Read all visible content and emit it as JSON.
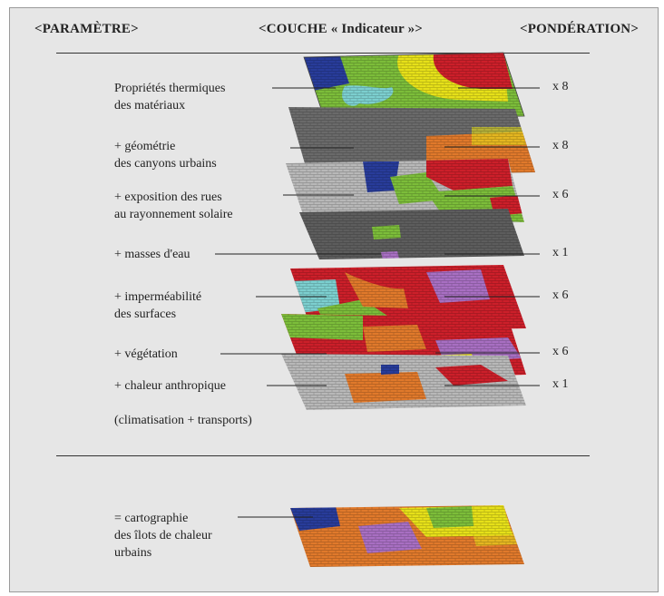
{
  "header": {
    "parametre": "<PARAMÈTRE>",
    "couche": "<COUCHE « Indicateur »>",
    "ponderation": "<PONDÉRATION>"
  },
  "parameters": [
    {
      "line1": "Propriétés thermiques",
      "line2": "des matériaux",
      "weight": "x 8"
    },
    {
      "line1": "+ géométrie",
      "line2": "des canyons urbains",
      "weight": "x 8"
    },
    {
      "line1": "+ exposition des rues",
      "line2": "au rayonnement solaire",
      "weight": "x 6"
    },
    {
      "line1": "+ masses d'eau",
      "weight": "x 1"
    },
    {
      "line1": "+ imperméabilité",
      "line2": "des surfaces",
      "weight": "x 6"
    },
    {
      "line1": "+ végétation",
      "weight": "x 6"
    },
    {
      "line1": "+ chaleur anthropique",
      "weight": "x 1"
    }
  ],
  "note": "(climatisation + transports)",
  "result": {
    "line1": "= cartographie",
    "line2": "des îlots de chaleur",
    "line3": "urbains"
  },
  "colors": {
    "background": "#e6e6e6",
    "red": "#cc1f2a",
    "yellow": "#e6e019",
    "green": "#7cbd3a",
    "blue": "#283c9a",
    "cyan": "#7ccfcf",
    "orange": "#e0792b",
    "purple": "#a86fc2",
    "grey": "#b8b8b8",
    "dark_grey": "#5d5d5d"
  }
}
